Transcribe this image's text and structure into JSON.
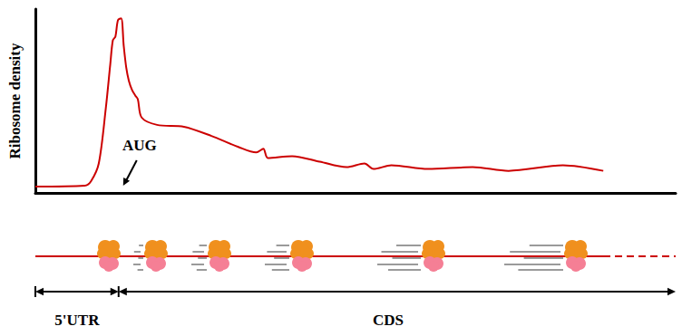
{
  "chart_data": {
    "type": "line",
    "y_label": "Ribosome density",
    "x": [
      0,
      7.7,
      8.7,
      9.9,
      11,
      11.7,
      12.1,
      12.5,
      12.9,
      13.4,
      13.8,
      14.2,
      14.6,
      15.1,
      15.6,
      16,
      16.6,
      19,
      23.2,
      27.5,
      31.7,
      34.5,
      35.6,
      36.3,
      40.1,
      44.4,
      48.6,
      51.4,
      52.8,
      55.6,
      61.3,
      68.3,
      73.9,
      82.4,
      88.7
    ],
    "values": [
      3.4,
      3.9,
      6.4,
      16,
      46,
      70,
      83,
      85,
      94,
      95,
      80,
      68,
      61,
      56,
      53,
      51,
      41,
      37,
      36,
      31,
      25,
      22,
      24,
      19,
      20,
      17,
      14,
      16,
      13,
      15,
      13,
      14,
      12,
      15,
      12
    ],
    "color": "#cc0000",
    "xlim": [
      0,
      100
    ],
    "ylim": [
      0,
      100
    ],
    "xticks": [],
    "yticks": [],
    "grid": false,
    "tick_labels": false,
    "annotations": [
      {
        "text": "AUG",
        "x": 13,
        "y": 0
      }
    ],
    "regions": [
      {
        "label": "5'UTR",
        "start": 0,
        "end": 13
      },
      {
        "label": "CDS",
        "start": 13,
        "end": 100
      }
    ]
  }
}
